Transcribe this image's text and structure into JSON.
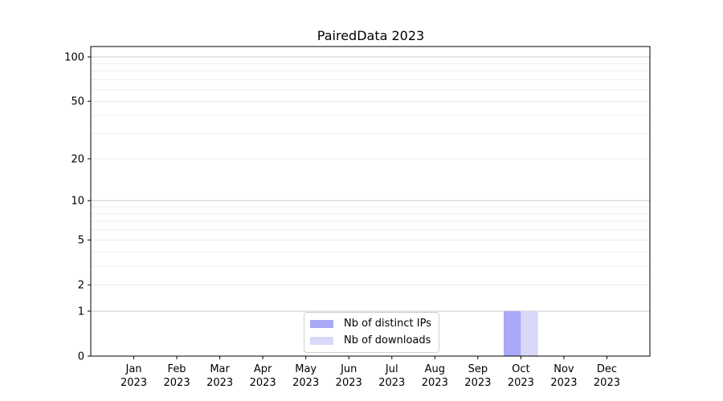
{
  "chart_data": {
    "type": "bar",
    "title": "PairedData 2023",
    "xlabel": "",
    "ylabel": "",
    "categories": [
      "Jan\n2023",
      "Feb\n2023",
      "Mar\n2023",
      "Apr\n2023",
      "May\n2023",
      "Jun\n2023",
      "Jul\n2023",
      "Aug\n2023",
      "Sep\n2023",
      "Oct\n2023",
      "Nov\n2023",
      "Dec\n2023"
    ],
    "series": [
      {
        "name": "Nb of distinct IPs",
        "color": "#a9a9f7",
        "values": [
          0,
          0,
          0,
          0,
          0,
          0,
          0,
          0,
          0,
          1,
          0,
          0
        ]
      },
      {
        "name": "Nb of downloads",
        "color": "#d9d9f7",
        "values": [
          0,
          0,
          0,
          0,
          0,
          0,
          0,
          0,
          0,
          1,
          0,
          0
        ]
      }
    ],
    "yscale": "log1p",
    "ylim": [
      0,
      118
    ],
    "yticks": [
      0,
      1,
      2,
      5,
      10,
      20,
      50,
      100
    ],
    "grid": {
      "minor_values": [
        3,
        4,
        6,
        7,
        8,
        9,
        30,
        40,
        60,
        70,
        80,
        90
      ],
      "emphasized_values": [
        1,
        10,
        100
      ],
      "minor_color": "#ececec",
      "emphasized_color": "#c9c9c9"
    },
    "legend": {
      "position": "lower center"
    },
    "axis_color": "#000000",
    "text_color": "#000000"
  }
}
